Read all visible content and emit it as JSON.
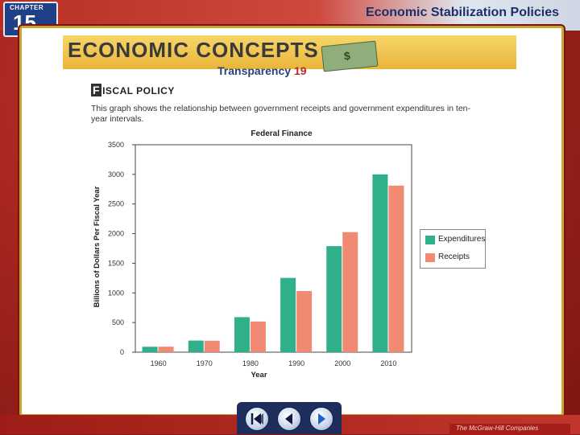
{
  "header": {
    "chapter_label": "CHAPTER",
    "chapter_number": "15",
    "title": "Economic Stabilization Policies"
  },
  "banner": {
    "title": "ECONOMIC CONCEPTS",
    "transparency_label": "Transparency",
    "transparency_number": "19"
  },
  "section": {
    "heading_initial": "F",
    "heading_rest": "ISCAL POLICY",
    "description": "This graph shows the relationship between government receipts and government expenditures in ten-year intervals."
  },
  "colors": {
    "expenditures": "#2fb08a",
    "receipts": "#f08a73"
  },
  "chart_data": {
    "type": "bar",
    "title": "Federal Finance",
    "xlabel": "Year",
    "ylabel": "Billions of Dollars Per Fiscal Year",
    "categories": [
      "1960",
      "1970",
      "1980",
      "1990",
      "2000",
      "2010"
    ],
    "ylim": [
      0,
      3500
    ],
    "yticks": [
      0,
      500,
      1000,
      1500,
      2000,
      2500,
      3000,
      3500
    ],
    "grid": false,
    "legend": "right",
    "series": [
      {
        "name": "Expenditures",
        "values": [
          92,
          196,
          591,
          1253,
          1789,
          3000
        ]
      },
      {
        "name": "Receipts",
        "values": [
          93,
          193,
          517,
          1032,
          2025,
          2810
        ]
      }
    ]
  },
  "icons": {
    "dollar": "dollar-bill-icon",
    "first": "skip-back-icon",
    "prev": "arrow-left-icon",
    "next": "arrow-right-icon"
  },
  "footer": {
    "publisher": "The McGraw-Hill Companies"
  }
}
